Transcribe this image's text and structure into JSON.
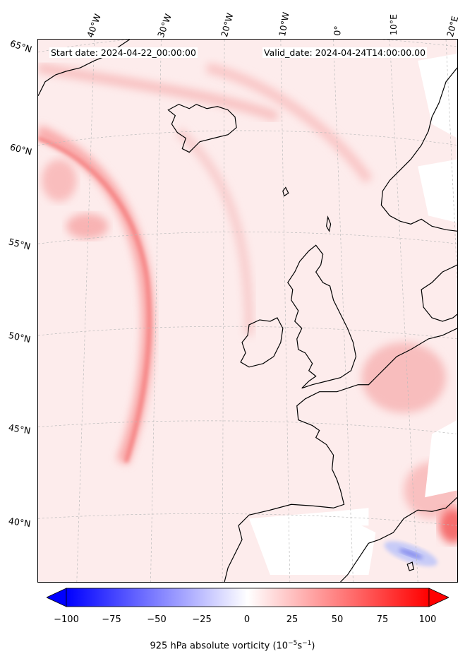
{
  "header": {
    "start_date": "Start date: 2024-04-22_00:00:00",
    "valid_date": "Valid_date: 2024-04-24T14:00:00.00"
  },
  "lon_labels": [
    "40°W",
    "30°W",
    "20°W",
    "10°W",
    "0°",
    "10°E",
    "20°E"
  ],
  "lat_labels": [
    "65°N",
    "60°N",
    "55°N",
    "50°N",
    "45°N",
    "40°N"
  ],
  "colorbar": {
    "ticks": [
      "−100",
      "−75",
      "−50",
      "−25",
      "0",
      "25",
      "50",
      "75",
      "100"
    ],
    "label_prefix": "925 hPa absolute vorticity (10",
    "label_exp1": "−5",
    "label_mid": "s",
    "label_exp2": "−1",
    "label_suffix": ")",
    "range": [
      -100,
      100
    ],
    "colors": {
      "min": "#0000ff",
      "mid": "#ffffff",
      "max": "#ff0000"
    }
  },
  "colors": {
    "background_field": "#fdeeee",
    "coast": "#000000",
    "gridline": "#bbbbbb"
  }
}
